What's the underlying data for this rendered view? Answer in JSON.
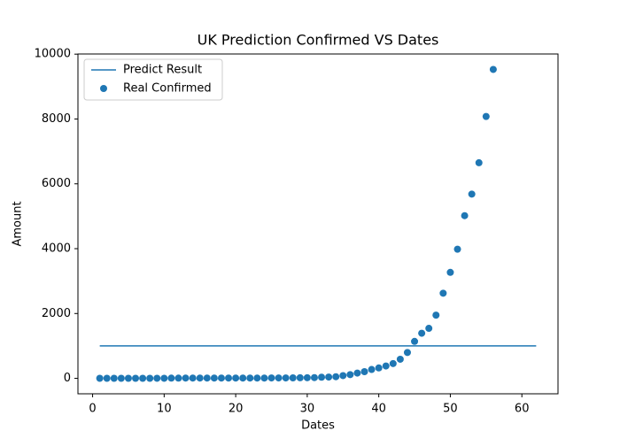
{
  "chart_data": {
    "type": "scatter",
    "title": "UK Prediction Confirmed VS Dates",
    "x_label": "Dates",
    "y_label": "Amount",
    "xlim": [
      -2.05,
      65.05
    ],
    "ylim": [
      -476,
      10005
    ],
    "xticks": [
      0,
      10,
      20,
      30,
      40,
      50,
      60
    ],
    "yticks": [
      0,
      2000,
      4000,
      6000,
      8000,
      10000
    ],
    "legend": "upper left",
    "series": [
      {
        "name": "Predict Result",
        "type": "line",
        "color": "#1f77b4",
        "x": [
          1,
          62
        ],
        "values": [
          1000,
          1000
        ]
      },
      {
        "name": "Real Confirmed",
        "type": "scatter",
        "color": "#1f77b4",
        "x": [
          1,
          2,
          3,
          4,
          5,
          6,
          7,
          8,
          9,
          10,
          11,
          12,
          13,
          14,
          15,
          16,
          17,
          18,
          19,
          20,
          21,
          22,
          23,
          24,
          25,
          26,
          27,
          28,
          29,
          30,
          31,
          32,
          33,
          34,
          35,
          36,
          37,
          38,
          39,
          40,
          41,
          42,
          43,
          44,
          45,
          46,
          47,
          48,
          49,
          50,
          51,
          52,
          53,
          54,
          55,
          56
        ],
        "values": [
          2,
          2,
          2,
          2,
          2,
          2,
          2,
          2,
          3,
          3,
          8,
          8,
          9,
          9,
          9,
          9,
          9,
          9,
          9,
          9,
          9,
          9,
          9,
          9,
          13,
          13,
          13,
          15,
          19,
          20,
          23,
          36,
          40,
          51,
          85,
          115,
          163,
          206,
          273,
          321,
          382,
          456,
          590,
          798,
          1140,
          1391,
          1543,
          1950,
          2626,
          3269,
          3983,
          5018,
          5683,
          6650,
          8077,
          9529
        ]
      }
    ]
  }
}
